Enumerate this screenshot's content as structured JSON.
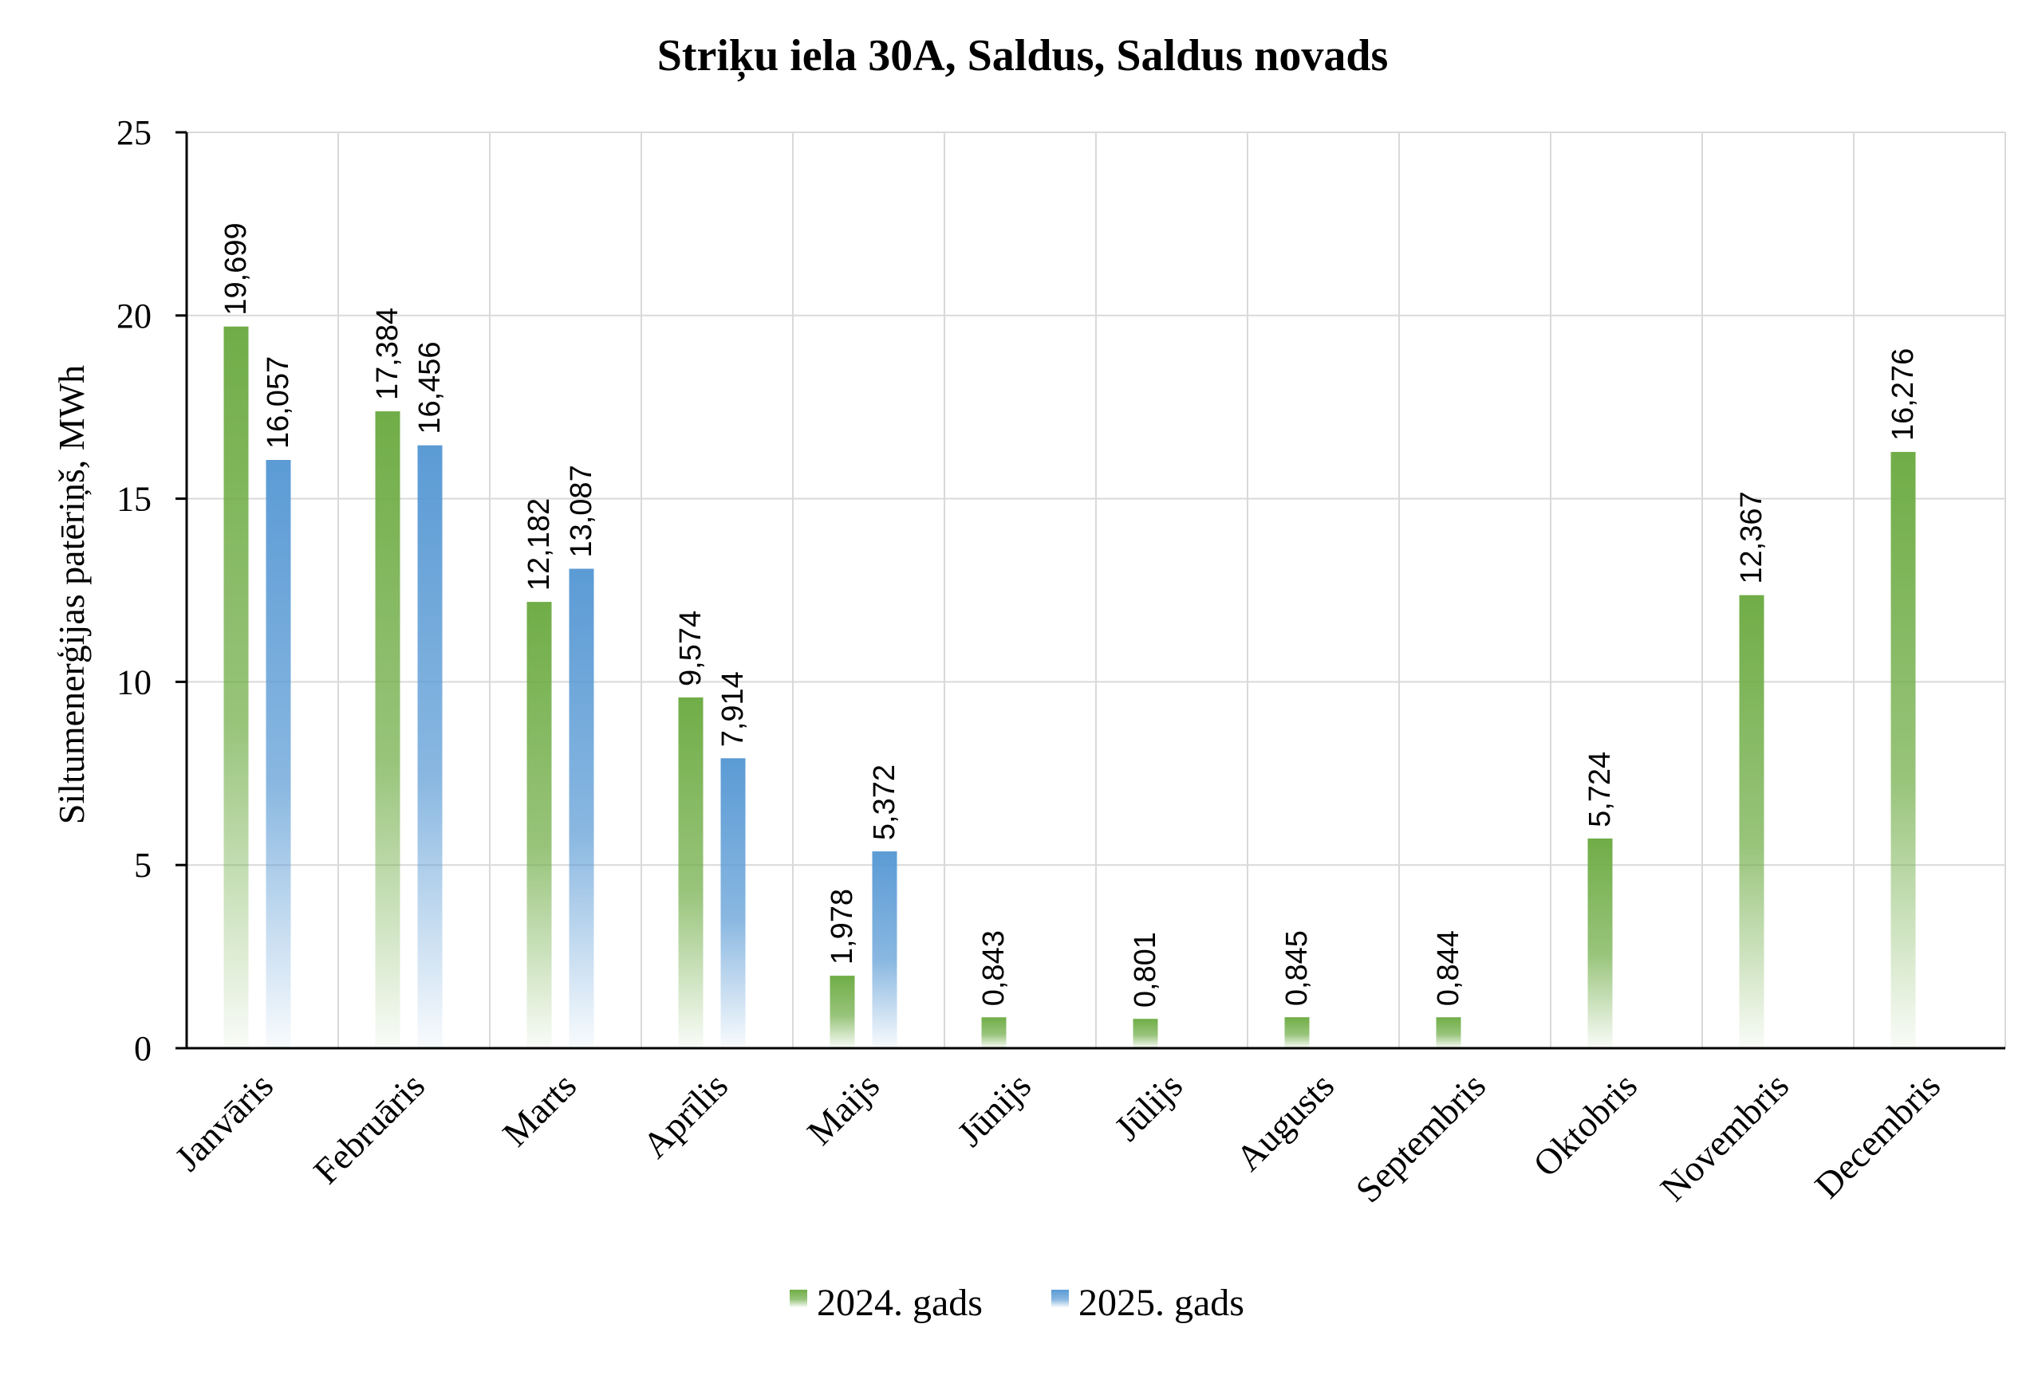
{
  "chart_data": {
    "type": "bar",
    "title": "Striķu iela 30A, Saldus, Saldus novads",
    "ylabel": "Siltumenerģijas patēriņš, MWh",
    "xlabel": "",
    "ylim": [
      0,
      25
    ],
    "yticks": [
      0,
      5,
      10,
      15,
      20,
      25
    ],
    "grid": true,
    "legend_position": "bottom",
    "categories": [
      "Janvāris",
      "Februāris",
      "Marts",
      "Aprīlis",
      "Maijs",
      "Jūnijs",
      "Jūlijs",
      "Augusts",
      "Septembris",
      "Oktobris",
      "Novembris",
      "Decembris"
    ],
    "series": [
      {
        "name": "2024. gads",
        "color": "#70ad47",
        "values": [
          19.699,
          17.384,
          12.182,
          9.574,
          1.978,
          0.843,
          0.801,
          0.845,
          0.844,
          5.724,
          12.367,
          16.276
        ],
        "labels": [
          "19,699",
          "17,384",
          "12,182",
          "9,574",
          "1,978",
          "0,843",
          "0,801",
          "0,845",
          "0,844",
          "5,724",
          "12,367",
          "16,276"
        ]
      },
      {
        "name": "2025. gads",
        "color": "#5b9bd5",
        "values": [
          16.057,
          16.456,
          13.087,
          7.914,
          5.372,
          null,
          null,
          null,
          null,
          null,
          null,
          null
        ],
        "labels": [
          "16,057",
          "16,456",
          "13,087",
          "7,914",
          "5,372",
          "",
          "",
          "",
          "",
          "",
          "",
          ""
        ]
      }
    ]
  }
}
